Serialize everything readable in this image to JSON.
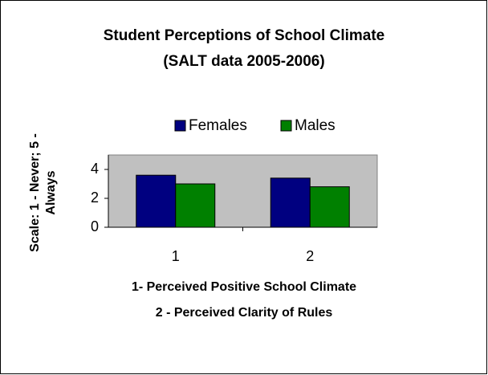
{
  "chart_data": {
    "type": "bar",
    "title": "Student Perceptions of School Climate",
    "subtitle": "(SALT data 2005-2006)",
    "ylabel": [
      "Scale: 1 - Never; 5 -",
      "Always"
    ],
    "categories": [
      "1",
      "2"
    ],
    "series": [
      {
        "name": "Females",
        "color": "#000080",
        "values": [
          3.6,
          3.4
        ]
      },
      {
        "name": "Males",
        "color": "#008000",
        "values": [
          3.0,
          2.8
        ]
      }
    ],
    "ylim": [
      0,
      5
    ],
    "yticks": [
      0,
      2,
      4
    ],
    "plot_background": "#c0c0c0",
    "legend": "top",
    "annotations": [
      "1- Perceived Positive School Climate",
      "2 - Perceived Clarity of Rules"
    ]
  }
}
